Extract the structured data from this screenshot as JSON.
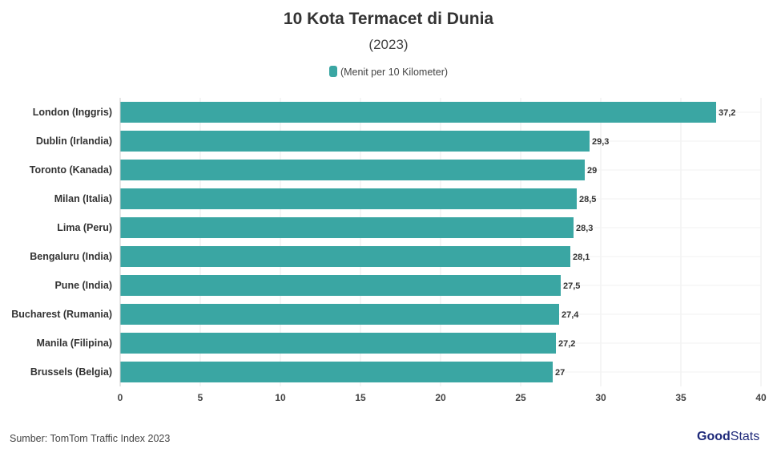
{
  "chart_data": {
    "type": "bar",
    "orientation": "horizontal",
    "title": "10 Kota Termacet di Dunia",
    "subtitle": "(2023)",
    "legend": "(Menit per 10 Kilometer)",
    "legend_placement": "top",
    "categories": [
      "London (Inggris)",
      "Dublin (Irlandia)",
      "Toronto (Kanada)",
      "Milan (Italia)",
      "Lima (Peru)",
      "Bengaluru (India)",
      "Pune (India)",
      "Bucharest (Rumania)",
      "Manila (Filipina)",
      "Brussels (Belgia)"
    ],
    "values": [
      37.2,
      29.3,
      29,
      28.5,
      28.3,
      28.1,
      27.5,
      27.4,
      27.2,
      27
    ],
    "data_labels": [
      "37,2",
      "29,3",
      "29",
      "28,5",
      "28,3",
      "28,1",
      "27,5",
      "27,4",
      "27,2",
      "27"
    ],
    "xlim": [
      0,
      40
    ],
    "xticks": [
      0,
      5,
      10,
      15,
      20,
      25,
      30,
      35,
      40
    ],
    "grid": true,
    "color": "#3aa6a3"
  },
  "source": "Sumber: TomTom Traffic Index 2023",
  "logo": {
    "part1": "Good",
    "part2": "Stats"
  }
}
